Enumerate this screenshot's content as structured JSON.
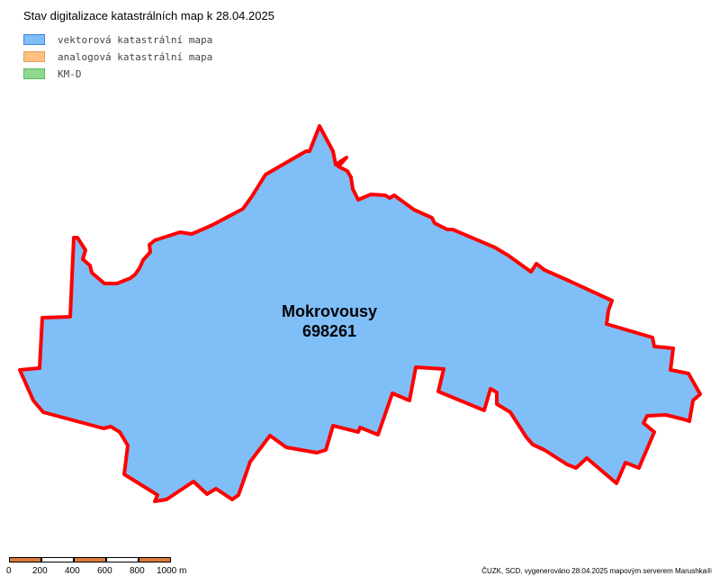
{
  "title": "Stav digitalizace katastrálních map k 28.04.2025",
  "legend": [
    {
      "label": "vektorová katastrální mapa",
      "fill": "#80bef8",
      "stroke": "#3a86d8"
    },
    {
      "label": "analogová katastrální mapa",
      "fill": "#ffc080",
      "stroke": "#e0a060"
    },
    {
      "label": "KM-D",
      "fill": "#90d890",
      "stroke": "#5cb85c"
    }
  ],
  "map": {
    "area_name": "Mokrovousy",
    "area_code": "698261",
    "area_fill": "#80bef8",
    "boundary_color": "#ff0000"
  },
  "scale": {
    "ticks": [
      "0",
      "200",
      "400",
      "600",
      "800",
      "1000 m"
    ],
    "fill_color": "#d97a3a"
  },
  "credit": "ČUZK, SCD, vygenerováno 28.04.2025 mapovým serverem Marushka®"
}
